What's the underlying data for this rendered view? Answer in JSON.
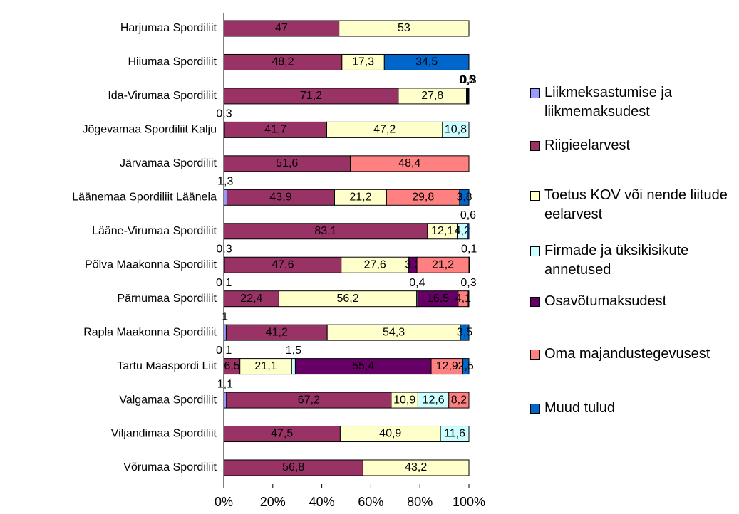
{
  "chart_data": {
    "type": "stacked_bar_horizontal_percent",
    "categories": [
      "Harjumaa Spordiliit",
      "Hiiumaa Spordiliit",
      "Ida-Virumaa Spordiliit",
      "Jõgevamaa Spordiliit Kalju",
      "Järvamaa Spordiliit",
      "Läänemaa Spordiliit Läänela",
      "Lääne-Virumaa Spordiliit",
      "Põlva Maakonna Spordiliit",
      "Pärnumaa Spordiliit",
      "Rapla Maakonna Spordiliit",
      "Tartu Maaspordi Liit",
      "Valgamaa Spordiliit",
      "Viljandimaa Spordiliit",
      "Võrumaa Spordiliit"
    ],
    "series": [
      {
        "name": "Liikmeksastumise ja liikmemaksudest",
        "color": "#9999ff",
        "values": [
          null,
          null,
          null,
          0.3,
          null,
          1.3,
          null,
          0.3,
          0.1,
          1,
          0.1,
          1.1,
          null,
          null
        ],
        "value_labels": [
          null,
          null,
          null,
          "0,3",
          null,
          "1,3",
          null,
          "0,3",
          "0,1",
          "1",
          "0,1",
          "1,1",
          null,
          null
        ]
      },
      {
        "name": "Riigieelarvest",
        "color": "#993366",
        "values": [
          47,
          48.2,
          71.2,
          41.7,
          51.6,
          43.9,
          83.1,
          47.6,
          22.4,
          41.2,
          6.5,
          67.2,
          47.5,
          56.8
        ],
        "value_labels": [
          "47",
          "48,2",
          "71,2",
          "41,7",
          "51,6",
          "43,9",
          "83,1",
          "47,6",
          "22,4",
          "41,2",
          "6,5",
          "67,2",
          "47,5",
          "56,8"
        ]
      },
      {
        "name": "Toetus KOV või nende liitude eelarvest",
        "color": "#ffffcc",
        "values": [
          53,
          17.3,
          27.8,
          47.2,
          null,
          21.2,
          12.1,
          27.6,
          56.2,
          54.3,
          21.1,
          10.9,
          40.9,
          43.2
        ],
        "value_labels": [
          "53",
          "17,3",
          "27,8",
          "47,2",
          null,
          "21,2",
          "12,1",
          "27,6",
          "56,2",
          "54,3",
          "21,1",
          "10,9",
          "40,9",
          "43,2"
        ]
      },
      {
        "name": "Firmade ja üksikisikute annetused",
        "color": "#ccffff",
        "values": [
          null,
          null,
          0.5,
          10.8,
          null,
          null,
          4.2,
          null,
          0.4,
          null,
          1.5,
          12.6,
          11.6,
          null
        ],
        "value_labels": [
          null,
          null,
          "0,5",
          "10,8",
          null,
          null,
          "4,2",
          null,
          "0,4",
          null,
          "1,5",
          "12,6",
          "11,6",
          null
        ]
      },
      {
        "name": "Osavõtumaksudest",
        "color": "#660066",
        "values": [
          null,
          null,
          0.2,
          null,
          null,
          null,
          null,
          3.3,
          16.5,
          null,
          55.4,
          null,
          null,
          null
        ],
        "value_labels": [
          null,
          null,
          "0,2",
          null,
          null,
          null,
          null,
          "3,3",
          "16,5",
          null,
          "55,4",
          null,
          null,
          null
        ]
      },
      {
        "name": "Oma majandustegevusest",
        "color": "#ff8080",
        "values": [
          null,
          null,
          null,
          null,
          48.4,
          29.8,
          null,
          21.2,
          4.1,
          null,
          12.9,
          8.2,
          null,
          null
        ],
        "value_labels": [
          null,
          null,
          null,
          null,
          "48,4",
          "29,8",
          null,
          "21,2",
          "4,1",
          null,
          "12,9",
          "8,2",
          null,
          null
        ]
      },
      {
        "name": "Muud tulud",
        "color": "#0066cc",
        "values": [
          null,
          34.5,
          0.3,
          null,
          null,
          3.8,
          0.6,
          0.1,
          0.3,
          3.5,
          2.5,
          null,
          null,
          null
        ],
        "value_labels": [
          null,
          "34,5",
          "0,3",
          null,
          null,
          "3,8",
          "0,6",
          "0,1",
          "0,3",
          "3,5",
          "2,5",
          null,
          null,
          null
        ]
      }
    ],
    "xlim": [
      0,
      100
    ],
    "xticks": [
      {
        "value": 0,
        "label": "0%"
      },
      {
        "value": 20,
        "label": "20%"
      },
      {
        "value": 40,
        "label": "40%"
      },
      {
        "value": 60,
        "label": "60%"
      },
      {
        "value": 80,
        "label": "80%"
      },
      {
        "value": 100,
        "label": "100%"
      }
    ]
  }
}
